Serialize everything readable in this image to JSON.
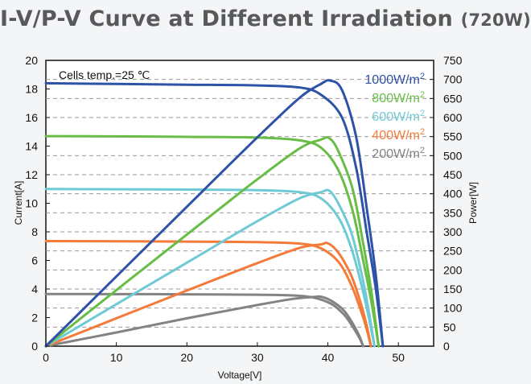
{
  "title": {
    "main": "I-V/P-V Curve at Different Irradiation",
    "suffix": "(720W)"
  },
  "chart_data": {
    "type": "line",
    "title": "I-V/P-V Curve at Different Irradiation (720W)",
    "xlabel": "Voltage[V]",
    "ylabel": "Current[A]",
    "y2label": "Power[W]",
    "annotation": "Cells temp.=25 ℃",
    "xlim": [
      0,
      55
    ],
    "ylim": [
      0,
      20
    ],
    "y2lim": [
      0,
      750
    ],
    "xticks": [
      0,
      10,
      20,
      30,
      40,
      50
    ],
    "yticks": [
      0,
      2,
      4,
      6,
      8,
      10,
      12,
      14,
      16,
      18,
      20
    ],
    "y2ticks": [
      0,
      50,
      100,
      150,
      200,
      250,
      300,
      350,
      400,
      450,
      500,
      550,
      600,
      650,
      700,
      750
    ],
    "grid": "dashed horizontal at power ticks",
    "legend_position": "top-right",
    "unit_prefix": "W/m",
    "unit_exp": "2",
    "series": [
      {
        "name": "1000W/m²",
        "label": "1000",
        "color": "#2d52a8",
        "iv": [
          [
            0,
            18.4
          ],
          [
            10,
            18.35
          ],
          [
            20,
            18.3
          ],
          [
            30,
            18.25
          ],
          [
            36,
            18.1
          ],
          [
            39,
            17.6
          ],
          [
            42,
            16.0
          ],
          [
            44,
            12.5
          ],
          [
            45.5,
            8.0
          ],
          [
            46.8,
            4.0
          ],
          [
            47.8,
            0
          ]
        ],
        "pv": [
          [
            0,
            0
          ],
          [
            10,
            183
          ],
          [
            20,
            366
          ],
          [
            30,
            548
          ],
          [
            36,
            652
          ],
          [
            39,
            688
          ],
          [
            40.3,
            697
          ],
          [
            42,
            672
          ],
          [
            44,
            550
          ],
          [
            45.5,
            364
          ],
          [
            46.8,
            187
          ],
          [
            47.8,
            0
          ]
        ]
      },
      {
        "name": "800W/m²",
        "label": "800",
        "color": "#67bd45",
        "iv": [
          [
            0,
            14.7
          ],
          [
            10,
            14.68
          ],
          [
            20,
            14.65
          ],
          [
            30,
            14.6
          ],
          [
            36,
            14.4
          ],
          [
            39,
            13.9
          ],
          [
            41.5,
            12.3
          ],
          [
            43.5,
            9.5
          ],
          [
            45,
            6.0
          ],
          [
            46.2,
            3.0
          ],
          [
            47.2,
            0
          ]
        ],
        "pv": [
          [
            0,
            0
          ],
          [
            10,
            147
          ],
          [
            20,
            293
          ],
          [
            30,
            438
          ],
          [
            36,
            519
          ],
          [
            39,
            542
          ],
          [
            40.2,
            546
          ],
          [
            41.5,
            511
          ],
          [
            43.5,
            413
          ],
          [
            45,
            270
          ],
          [
            46.2,
            139
          ],
          [
            47.2,
            0
          ]
        ]
      },
      {
        "name": "600W/m²",
        "label": "600",
        "color": "#6fcad6",
        "iv": [
          [
            0,
            11.0
          ],
          [
            10,
            10.98
          ],
          [
            20,
            10.96
          ],
          [
            30,
            10.92
          ],
          [
            36,
            10.78
          ],
          [
            39,
            10.35
          ],
          [
            41.5,
            9.0
          ],
          [
            43.3,
            6.9
          ],
          [
            44.8,
            4.2
          ],
          [
            45.8,
            2.0
          ],
          [
            46.6,
            0
          ]
        ],
        "pv": [
          [
            0,
            0
          ],
          [
            10,
            110
          ],
          [
            20,
            219
          ],
          [
            30,
            328
          ],
          [
            36,
            388
          ],
          [
            39,
            404
          ],
          [
            40.2,
            408
          ],
          [
            41.5,
            374
          ],
          [
            43.3,
            299
          ],
          [
            44.8,
            188
          ],
          [
            45.8,
            92
          ],
          [
            46.6,
            0
          ]
        ]
      },
      {
        "name": "400W/m²",
        "label": "400",
        "color": "#f47a3a",
        "iv": [
          [
            0,
            7.35
          ],
          [
            10,
            7.34
          ],
          [
            20,
            7.32
          ],
          [
            30,
            7.28
          ],
          [
            36,
            7.18
          ],
          [
            39,
            6.85
          ],
          [
            41.5,
            5.9
          ],
          [
            43.3,
            4.3
          ],
          [
            44.6,
            2.6
          ],
          [
            45.5,
            1.2
          ],
          [
            46.1,
            0
          ]
        ],
        "pv": [
          [
            0,
            0
          ],
          [
            10,
            73
          ],
          [
            20,
            146
          ],
          [
            30,
            218
          ],
          [
            36,
            258
          ],
          [
            39,
            267
          ],
          [
            40,
            270
          ],
          [
            41.5,
            245
          ],
          [
            43.3,
            186
          ],
          [
            44.6,
            116
          ],
          [
            45.5,
            55
          ],
          [
            46.1,
            0
          ]
        ]
      },
      {
        "name": "200W/m²",
        "label": "200",
        "color": "#838383",
        "iv": [
          [
            0,
            3.65
          ],
          [
            10,
            3.64
          ],
          [
            20,
            3.63
          ],
          [
            30,
            3.6
          ],
          [
            35,
            3.55
          ],
          [
            38,
            3.4
          ],
          [
            40.5,
            2.95
          ],
          [
            42.3,
            2.2
          ],
          [
            43.6,
            1.3
          ],
          [
            44.5,
            0.55
          ],
          [
            45,
            0
          ]
        ],
        "pv": [
          [
            0,
            0
          ],
          [
            10,
            36
          ],
          [
            20,
            73
          ],
          [
            30,
            108
          ],
          [
            35,
            124
          ],
          [
            38,
            129
          ],
          [
            39,
            130
          ],
          [
            40.5,
            119
          ],
          [
            42.3,
            93
          ],
          [
            43.6,
            57
          ],
          [
            44.5,
            25
          ],
          [
            45,
            0
          ]
        ]
      }
    ]
  },
  "colors": {
    "background": "#f4f5f6",
    "plot_background": "#ffffff",
    "title": "#58595b",
    "grid": "#9a9a9a"
  }
}
